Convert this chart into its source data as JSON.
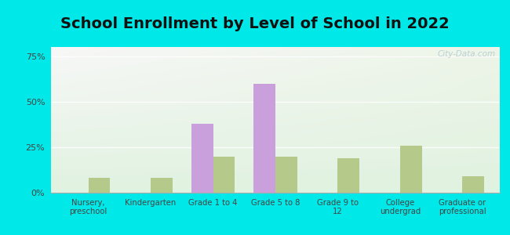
{
  "title": "School Enrollment by Level of School in 2022",
  "categories": [
    "Nursery,\npreschool",
    "Kindergarten",
    "Grade 1 to 4",
    "Grade 5 to 8",
    "Grade 9 to\n12",
    "College\nundergrad",
    "Graduate or\nprofessional"
  ],
  "zip_values": [
    0,
    0,
    38,
    60,
    0,
    0,
    0
  ],
  "nd_values": [
    8,
    8,
    20,
    20,
    19,
    26,
    9
  ],
  "zip_color": "#c9a0dc",
  "nd_color": "#b5c98a",
  "background_outer": "#00e8e8",
  "ylim": [
    0,
    80
  ],
  "yticks": [
    0,
    25,
    50,
    75
  ],
  "ytick_labels": [
    "0%",
    "25%",
    "50%",
    "75%"
  ],
  "title_fontsize": 14,
  "watermark": "City-Data.com",
  "bar_width": 0.35
}
